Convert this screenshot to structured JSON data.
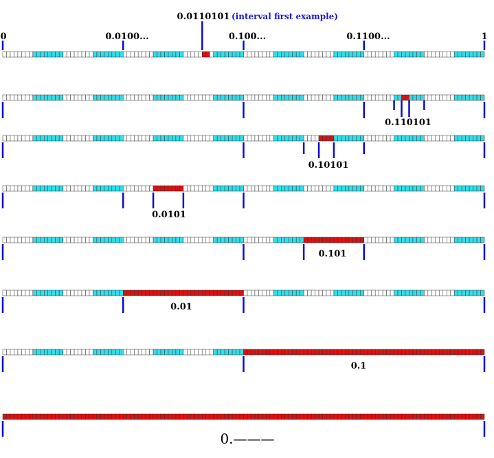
{
  "colors": {
    "background": "#ffffff",
    "cell_white": "#ffffff",
    "cell_cyan": "#33dde8",
    "cell_red": "#dd1111",
    "cell_border": "#333333",
    "tick_blue": "#0b0bcf",
    "label_blue": "#1a1ad0"
  },
  "header": {
    "target_label": "0.0110101",
    "target_note": "(interval first example)",
    "scale_labels": [
      "0",
      "0.0100...",
      "0.100...",
      "0.1100...",
      "1"
    ]
  },
  "rows": [
    {
      "label": "",
      "red_interval": [
        0.4141,
        0.4297
      ]
    },
    {
      "label": "0.110101",
      "red_interval": [
        0.8281,
        0.8438
      ]
    },
    {
      "label": "0.10101",
      "red_interval": [
        0.6563,
        0.6875
      ]
    },
    {
      "label": "0.0101",
      "red_interval": [
        0.3125,
        0.375
      ]
    },
    {
      "label": "0.101",
      "red_interval": [
        0.625,
        0.75
      ]
    },
    {
      "label": "0.01",
      "red_interval": [
        0.25,
        0.5
      ]
    },
    {
      "label": "0.1",
      "red_interval": [
        0.5,
        1.0
      ]
    },
    {
      "label": "",
      "red_interval": [
        0.0,
        1.0
      ]
    }
  ],
  "footer": {
    "label": "0.———"
  },
  "grid": {
    "cells_per_row": 128,
    "group_size": 8
  }
}
